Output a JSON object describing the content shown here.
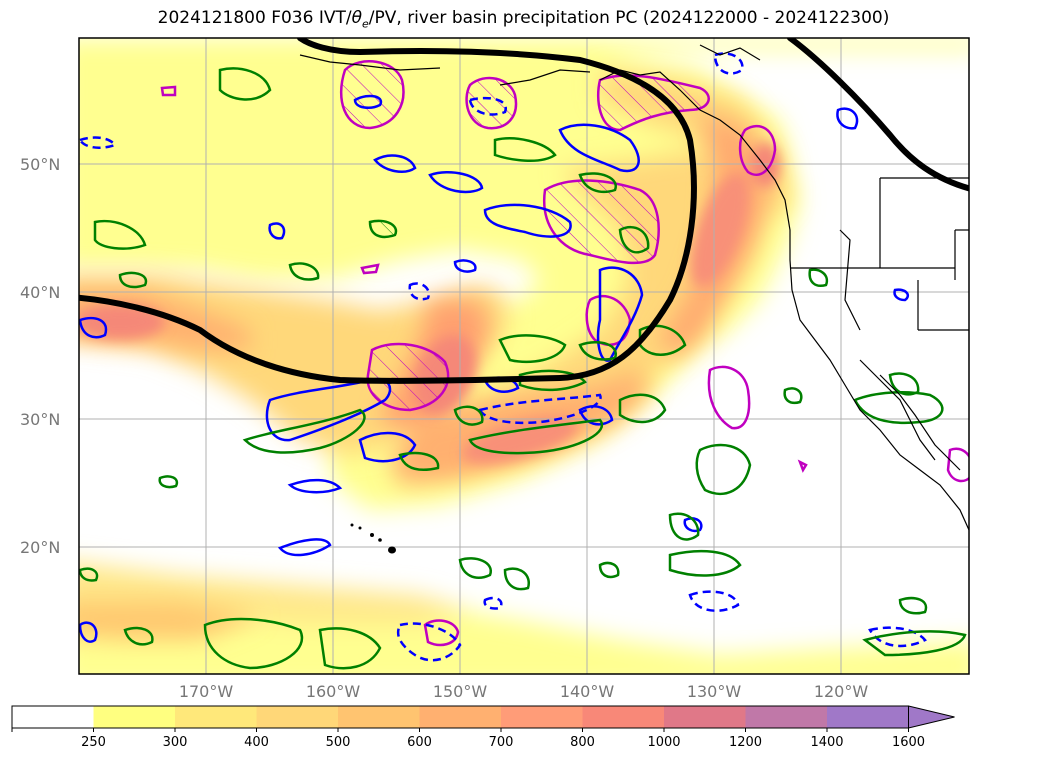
{
  "title": {
    "prefix": "2024121800 F036 IVT/",
    "theta_symbol": "θ",
    "theta_sub": "e",
    "suffix": "/PV, river basin precipitation PC (2024122000 - 2024122300)"
  },
  "map": {
    "projection_extent": {
      "lon_min": -180,
      "lon_max": -110,
      "lat_min": 10,
      "lat_max": 60
    },
    "lat_labels": [
      {
        "lat": 20,
        "text": "20°N"
      },
      {
        "lat": 30,
        "text": "30°N"
      },
      {
        "lat": 40,
        "text": "40°N"
      },
      {
        "lat": 50,
        "text": "50°N"
      }
    ],
    "lon_labels": [
      {
        "lon": -170,
        "text": "170°W"
      },
      {
        "lon": -160,
        "text": "160°W"
      },
      {
        "lon": -150,
        "text": "150°W"
      },
      {
        "lon": -140,
        "text": "140°W"
      },
      {
        "lon": -130,
        "text": "130°W"
      },
      {
        "lon": -120,
        "text": "120°W"
      }
    ],
    "gridlines": true,
    "colors": {
      "theta_e_contour": "#000000",
      "pv_positive": "#0000ff",
      "pv_dashed": "#0000ff",
      "green_contour": "#008000",
      "magenta_contour": "#c000c0",
      "coastline": "#000000",
      "grid": "#b0b0b0"
    }
  },
  "colorbar": {
    "ticks": [
      "250",
      "300",
      "400",
      "500",
      "600",
      "700",
      "800",
      "1000",
      "1200",
      "1400",
      "1600"
    ],
    "colors": [
      "#ffffff",
      "#ffff80",
      "#ffe87a",
      "#ffd778",
      "#ffc470",
      "#ffb070",
      "#ff9c78",
      "#f88878",
      "#e07888",
      "#c078a8",
      "#a078c8"
    ],
    "extend": "max"
  }
}
